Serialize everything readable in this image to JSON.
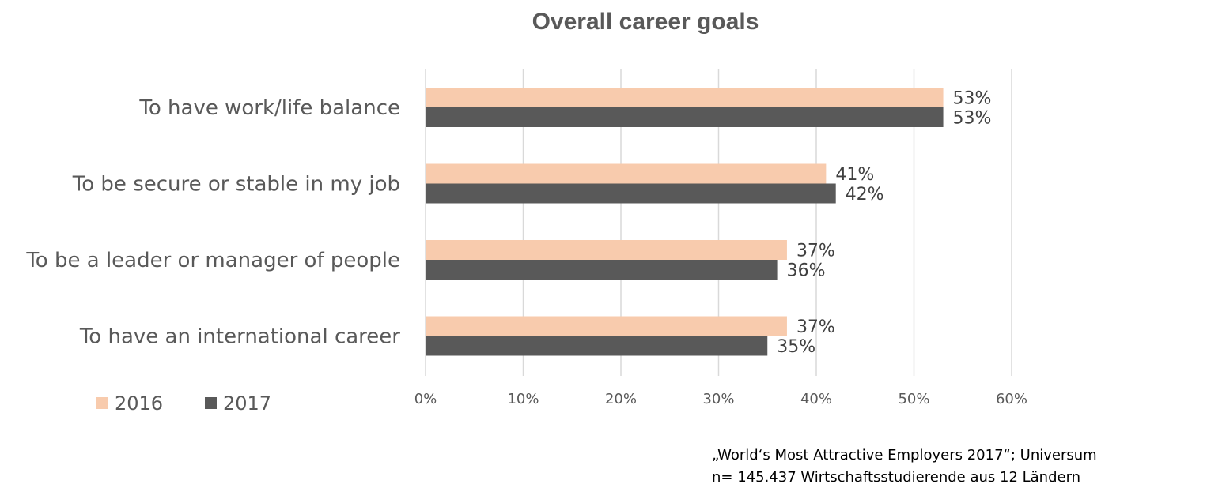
{
  "chart_data": {
    "type": "bar",
    "orientation": "horizontal",
    "title": "Overall career goals",
    "categories": [
      "To have work/life balance",
      "To be secure or stable in my job",
      "To be a leader or manager of people",
      "To have an international career"
    ],
    "series": [
      {
        "name": "2016",
        "values": [
          53,
          41,
          37,
          37
        ],
        "labels": [
          "53%",
          "41%",
          "37%",
          "37%"
        ],
        "color": "#F8CBAD"
      },
      {
        "name": "2017",
        "values": [
          53,
          42,
          36,
          35
        ],
        "labels": [
          "53%",
          "42%",
          "36%",
          "35%"
        ],
        "color": "#595959"
      }
    ],
    "xlim": [
      0,
      60
    ],
    "xticks": [
      0,
      10,
      20,
      30,
      40,
      50,
      60
    ],
    "xtick_labels": [
      "0%",
      "10%",
      "20%",
      "30%",
      "40%",
      "50%",
      "60%"
    ],
    "grid": true,
    "legend_placement": "bottom-left",
    "gridline_color": "#D9D9D9"
  },
  "source": {
    "line1": "„World‘s Most Attractive Employers 2017“; Universum",
    "line2": "n= 145.437 Wirtschaftsstudierende aus 12 Ländern"
  }
}
